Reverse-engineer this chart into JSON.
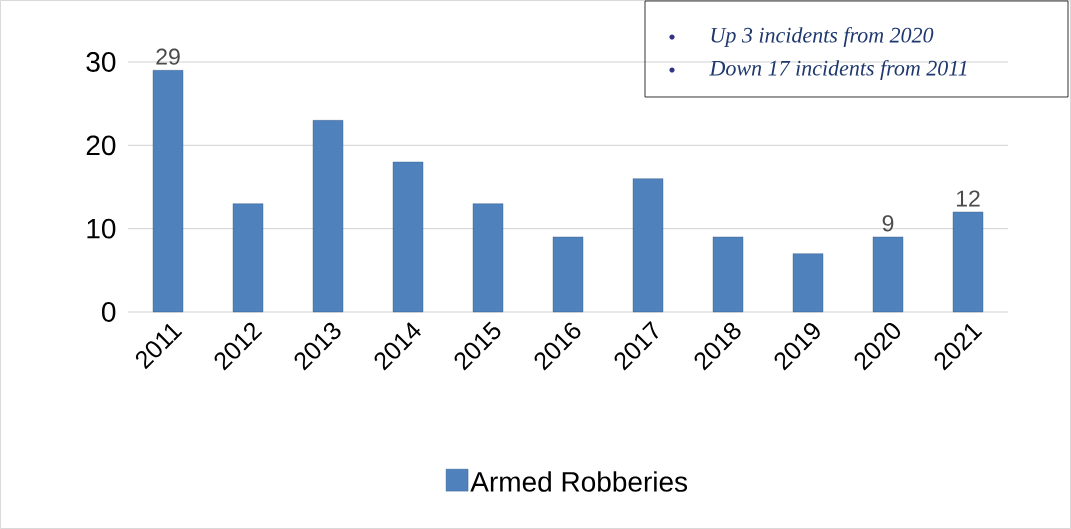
{
  "chart_data": {
    "type": "bar",
    "categories": [
      "2011",
      "2012",
      "2013",
      "2014",
      "2015",
      "2016",
      "2017",
      "2018",
      "2019",
      "2020",
      "2021"
    ],
    "series": [
      {
        "name": "Armed Robberies",
        "color": "#4f81bd",
        "values": [
          29,
          13,
          23,
          18,
          13,
          9,
          16,
          9,
          7,
          9,
          12
        ],
        "value_labels": [
          "29",
          null,
          null,
          null,
          null,
          null,
          null,
          null,
          null,
          "9",
          "12"
        ]
      }
    ],
    "ylim": [
      0,
      30
    ],
    "yticks": [
      0,
      10,
      20,
      30
    ],
    "grid": "y",
    "legend": "bottom",
    "annotations": [
      "Up 3 incidents from 2020",
      "Down 17 incidents from 2011"
    ]
  }
}
